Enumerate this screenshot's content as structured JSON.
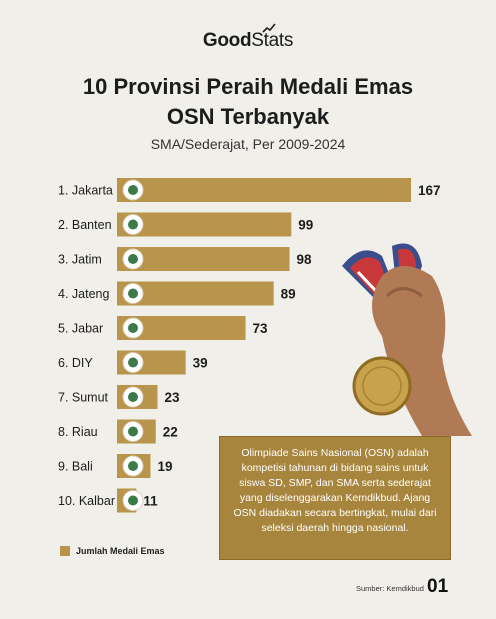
{
  "brand": {
    "good": "Good",
    "stats": "Stats"
  },
  "title": "10 Provinsi Peraih Medali Emas\nOSN Terbanyak",
  "subtitle": "SMA/Sederajat, Per 2009-2024",
  "legend_label": "Jumlah Medali Emas",
  "description": "Olimpiade Sains Nasional (OSN) adalah kompetisi tahunan di bidang sains untuk siswa SD, SMP, dan SMA serta sederajat yang diselenggarakan Kemdikbud. Ajang OSN diadakan secara bertingkat, mulai dari seleksi daerah hingga nasional.",
  "source": "Sumber: Kemdikbud",
  "page_number": "01",
  "colors": {
    "bar": "#b8954a",
    "background": "#f1efe9",
    "note_box": "#a8853d"
  },
  "icons": [
    "province-emblem-icon",
    "medal-photo"
  ],
  "chart_data": {
    "type": "bar",
    "orientation": "horizontal",
    "title": "10 Provinsi Peraih Medali Emas OSN Terbanyak",
    "subtitle": "SMA/Sederajat, Per 2009-2024",
    "categories": [
      "1. Jakarta",
      "2. Banten",
      "3. Jatim",
      "4. Jateng",
      "5. Jabar",
      "6. DIY",
      "7. Sumut",
      "8. Riau",
      "9. Bali",
      "10. Kalbar"
    ],
    "series": [
      {
        "name": "Jumlah Medali Emas",
        "values": [
          167,
          99,
          98,
          89,
          73,
          39,
          23,
          22,
          19,
          11
        ]
      }
    ],
    "xlim": [
      0,
      167
    ],
    "grid": false,
    "legend": "bottom-left",
    "data_labels": true
  }
}
